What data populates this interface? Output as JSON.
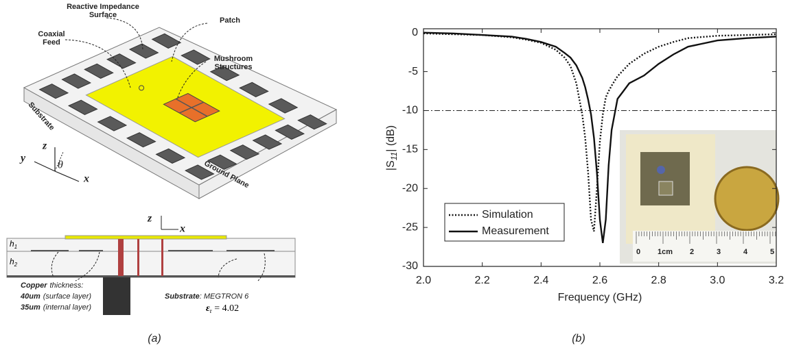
{
  "diagram": {
    "ris": [
      "Reactive Impedance",
      "Surface"
    ],
    "patch": "Patch",
    "feed": [
      "Coaxial",
      "Feed"
    ],
    "mushroom": [
      "Mushroom",
      "Structures"
    ],
    "substrate": "Substrate",
    "ground": "Ground Plane",
    "axes": {
      "z": "z",
      "y": "y",
      "x": "x",
      "theta": "θ"
    },
    "section": {
      "z": "z",
      "x": "x",
      "h1": {
        "h": "h",
        "sub": "1"
      },
      "h2": {
        "h": "h",
        "sub": "2"
      },
      "copper": [
        "Copper",
        "thickness:"
      ],
      "l40": [
        "40um",
        "(surface layer)"
      ],
      "l35": [
        "35um",
        "(internal layer)"
      ],
      "sub": [
        "Substrate",
        ": MEGTRON 6"
      ],
      "eps": {
        "e": "ε",
        "sub": "r",
        "val": " = 4.02"
      }
    }
  },
  "inset": {
    "ruler_labels": [
      "0",
      "1cm",
      "2",
      "3",
      "4",
      "5"
    ]
  },
  "captions": {
    "a": "(a)",
    "b": "(b)"
  },
  "chart_data": {
    "type": "line",
    "xlabel": "Frequency (GHz)",
    "ylabel": {
      "prefix": "|S",
      "sub": "11",
      "suffix": "| (dB)"
    },
    "x": [
      2.0,
      2.1,
      2.2,
      2.3,
      2.35,
      2.4,
      2.45,
      2.48,
      2.5,
      2.52,
      2.54,
      2.55,
      2.56,
      2.57,
      2.58,
      2.59,
      2.6,
      2.61,
      2.62,
      2.63,
      2.64,
      2.66,
      2.68,
      2.7,
      2.75,
      2.8,
      2.85,
      2.9,
      3.0,
      3.1,
      3.2
    ],
    "series": [
      {
        "name": "Simulation",
        "color": "#111",
        "dash": "dotted",
        "values": [
          -0.1,
          -0.2,
          -0.3,
          -0.6,
          -0.9,
          -1.3,
          -2.2,
          -3.2,
          -4.3,
          -6.5,
          -10.5,
          -13.5,
          -18,
          -24,
          -25.5,
          -20,
          -14,
          -10.5,
          -8.3,
          -7.5,
          -6.8,
          -5.6,
          -4.8,
          -4,
          -2.7,
          -1.8,
          -1.2,
          -0.7,
          -0.4,
          -0.3,
          -0.2
        ]
      },
      {
        "name": "Measurement",
        "color": "#111",
        "dash": "solid",
        "values": [
          0,
          -0.1,
          -0.3,
          -0.5,
          -0.8,
          -1.2,
          -1.8,
          -2.6,
          -3.2,
          -4.2,
          -5.8,
          -7,
          -8.6,
          -10.5,
          -13.5,
          -18,
          -24,
          -27,
          -24,
          -17,
          -12.5,
          -8.5,
          -7.5,
          -6.5,
          -5.5,
          -4,
          -2.8,
          -1.8,
          -1.0,
          -0.7,
          -0.5
        ]
      }
    ],
    "reference_line": -10,
    "xlim": [
      2.0,
      3.2
    ],
    "xticks": [
      {
        "value": 2.0,
        "label": "2.0"
      },
      2.2,
      2.4,
      2.6,
      2.8,
      {
        "value": 3.0,
        "label": "3.0"
      },
      3.2
    ],
    "ylim": [
      -30,
      0.5
    ],
    "yticks": [
      0,
      -5,
      -10,
      -15,
      -20,
      -25,
      -30
    ],
    "legend": "lower left",
    "grid": false
  }
}
